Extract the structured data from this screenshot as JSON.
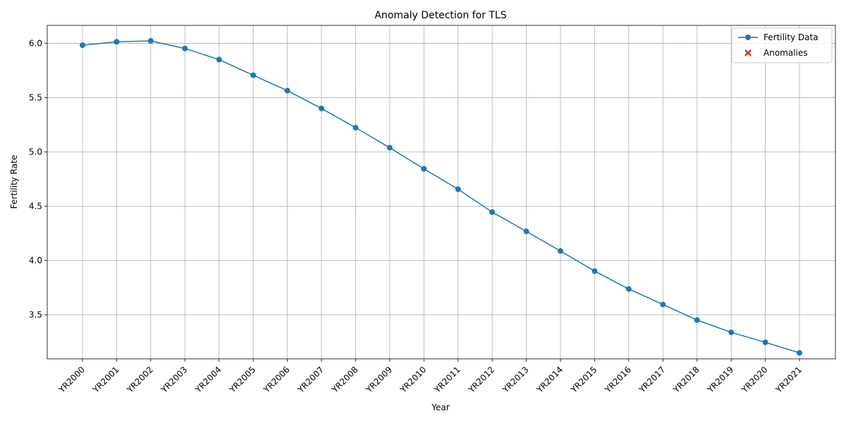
{
  "chart_data": {
    "type": "line",
    "title": "Anomaly Detection for TLS",
    "xlabel": "Year",
    "ylabel": "Fertility Rate",
    "categories": [
      "YR2000",
      "YR2001",
      "YR2002",
      "YR2003",
      "YR2004",
      "YR2005",
      "YR2006",
      "YR2007",
      "YR2008",
      "YR2009",
      "YR2010",
      "YR2011",
      "YR2012",
      "YR2013",
      "YR2014",
      "YR2015",
      "YR2016",
      "YR2017",
      "YR2018",
      "YR2019",
      "YR2020",
      "YR2021"
    ],
    "series": [
      {
        "name": "Fertility Data",
        "color": "#1f77b4",
        "values": [
          5.983,
          6.015,
          6.023,
          5.953,
          5.851,
          5.707,
          5.565,
          5.401,
          5.224,
          5.039,
          4.845,
          4.657,
          4.446,
          4.269,
          4.088,
          3.903,
          3.738,
          3.596,
          3.452,
          3.339,
          3.247,
          3.15
        ]
      }
    ],
    "anomalies": {
      "name": "Anomalies",
      "color": "#ff0000",
      "points": []
    },
    "ylim": [
      3.095,
      6.166
    ],
    "yticks": [
      3.5,
      4.0,
      4.5,
      5.0,
      5.5,
      6.0
    ],
    "ytick_labels": [
      "3.5",
      "4.0",
      "4.5",
      "5.0",
      "5.5",
      "6.0"
    ],
    "grid": true,
    "legend_position": "top-right"
  }
}
